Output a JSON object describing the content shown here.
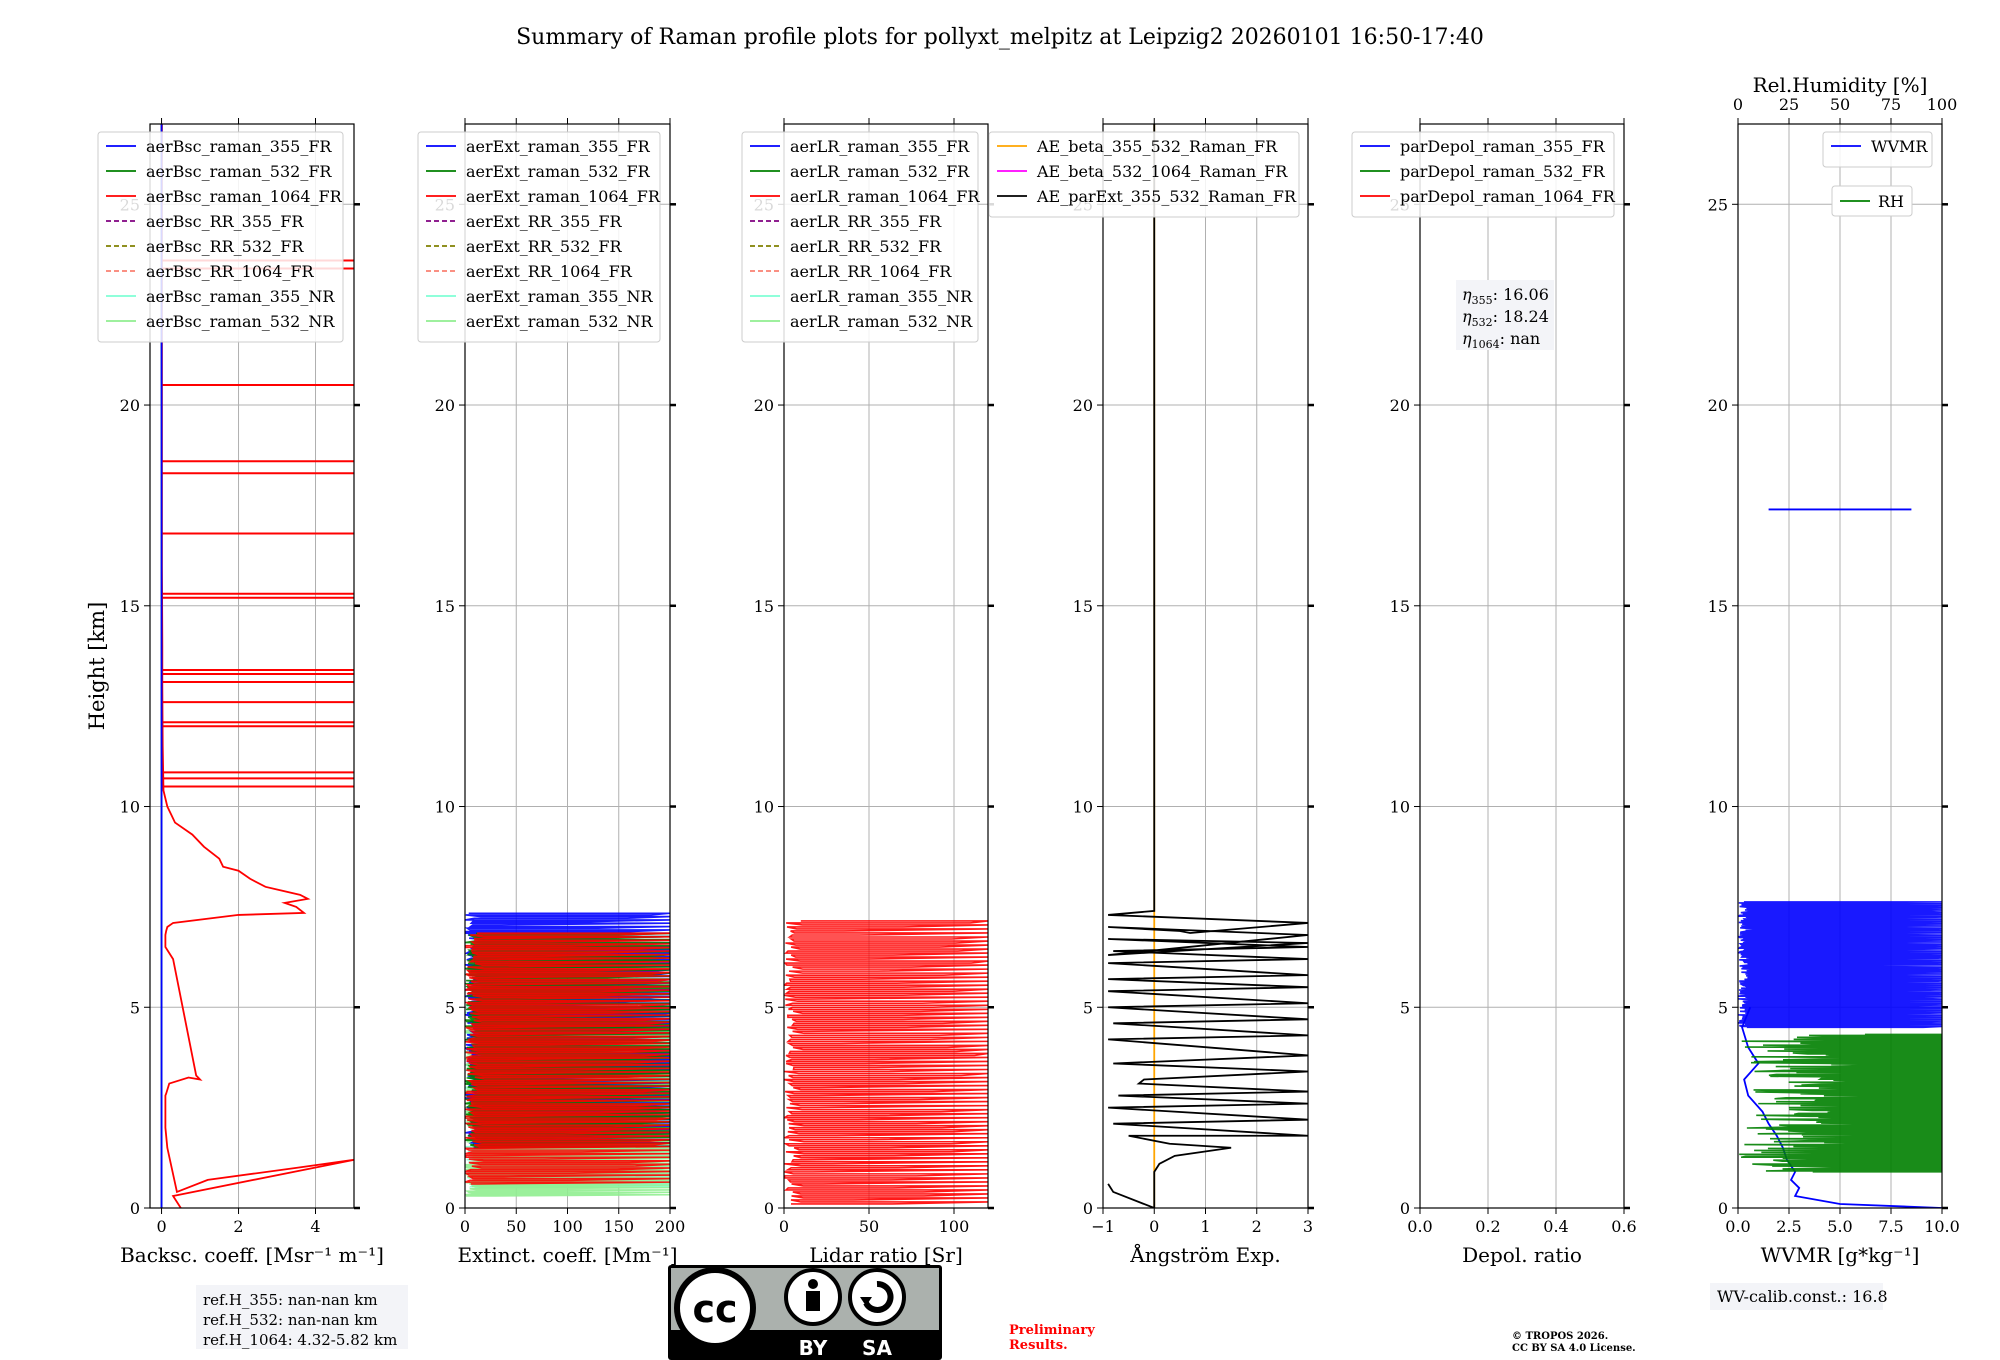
{
  "figure": {
    "title": "Summary of Raman profile plots for pollyxt_melpitz at Leipzig2 20260101 16:50-17:40",
    "ylabel": "Height [km]",
    "ref_heights": [
      "ref.H_355: nan-nan km",
      "ref.H_532: nan-nan km",
      "ref.H_1064: 4.32-5.82 km"
    ],
    "license_badge": {
      "cc": "cc",
      "by": "BY",
      "sa": "SA"
    },
    "preliminary": [
      "Preliminary",
      "Results."
    ],
    "copyright": [
      "© TROPOS 2026.",
      "CC BY SA 4.0 License."
    ],
    "wv_calib": "WV-calib.const.: 16.8",
    "colors": {
      "blue": "#0000ff",
      "green": "#008000",
      "red": "#ff0000",
      "purple": "#800080",
      "olive": "#808000",
      "salmon": "#fa8072",
      "aqua": "#7fffd4",
      "lightgreen": "#90ee90",
      "orange": "#ffa500",
      "magenta": "#ff00ff",
      "black": "#000000"
    }
  },
  "chart_data": [
    {
      "type": "line",
      "panel": "backscatter",
      "xlabel": "Backsc. coeff. [Msr⁻¹ m⁻¹]",
      "ylabel": "Height [km]",
      "xlim": [
        -0.3,
        5
      ],
      "ylim": [
        0,
        27
      ],
      "xticks": [
        0,
        2,
        4
      ],
      "yticks": [
        0,
        5,
        10,
        15,
        20,
        25
      ],
      "legend": [
        "aerBsc_raman_355_FR",
        "aerBsc_raman_532_FR",
        "aerBsc_raman_1064_FR",
        "aerBsc_RR_355_FR",
        "aerBsc_RR_532_FR",
        "aerBsc_RR_1064_FR",
        "aerBsc_raman_355_NR",
        "aerBsc_raman_532_NR"
      ],
      "legend_colors": [
        "blue",
        "green",
        "red",
        "purple",
        "olive",
        "salmon",
        "aqua",
        "lightgreen"
      ],
      "legend_dashed": [
        false,
        false,
        false,
        true,
        true,
        true,
        false,
        false
      ],
      "series": [
        {
          "name": "aerBsc_raman_1064_FR",
          "color": "red",
          "x": [
            0.5,
            0.3,
            5,
            3.5,
            1.2,
            0.4,
            0.15,
            0.1,
            0.1,
            0.12,
            0.2,
            0.7,
            1,
            0.9,
            0.3,
            0.1,
            0.1,
            0.12,
            0.15,
            0.3,
            2,
            3.7,
            3.5,
            3.2,
            3.8,
            3.6,
            2.7,
            2.3,
            2,
            1.6,
            1.5,
            1.1,
            0.8,
            0.35,
            0.25,
            0.15,
            0.1,
            0.05,
            0.03,
            0.02,
            0.02,
            0.01,
            0.01,
            0.01,
            0.01
          ],
          "y": [
            0,
            0.3,
            1.2,
            1.0,
            0.7,
            0.4,
            1.5,
            2.0,
            2.8,
            2.85,
            3.1,
            3.25,
            3.2,
            3.3,
            6.2,
            6.5,
            6.8,
            6.9,
            7.0,
            7.1,
            7.3,
            7.35,
            7.5,
            7.6,
            7.7,
            7.8,
            8.0,
            8.2,
            8.4,
            8.5,
            8.7,
            9.0,
            9.3,
            9.6,
            9.8,
            10.0,
            10.2,
            10.4,
            11.5,
            13.0,
            14.0,
            16.0,
            20.0,
            24.0,
            27.0
          ]
        },
        {
          "name": "aerBsc_raman_1064_FR_spikes",
          "color": "red",
          "spikes": [
            10.5,
            10.7,
            10.85,
            12.0,
            12.1,
            12.6,
            13.1,
            13.3,
            13.4,
            15.2,
            15.3,
            16.8,
            18.3,
            18.6,
            20.5,
            23.4,
            23.6
          ]
        },
        {
          "name": "aerBsc_raman_532_FR",
          "color": "green",
          "x": [
            0,
            0
          ],
          "y": [
            0,
            27
          ]
        },
        {
          "name": "aerBsc_raman_355_FR",
          "color": "blue",
          "x": [
            0,
            0
          ],
          "y": [
            0,
            27
          ]
        }
      ]
    },
    {
      "type": "line",
      "panel": "extinction",
      "xlabel": "Extinct. coeff. [Mm⁻¹]",
      "xlim": [
        0,
        200
      ],
      "ylim": [
        0,
        27
      ],
      "xticks": [
        0,
        50,
        100,
        150,
        200
      ],
      "yticks": [
        0,
        5,
        10,
        15,
        20,
        25
      ],
      "legend": [
        "aerExt_raman_355_FR",
        "aerExt_raman_532_FR",
        "aerExt_raman_1064_FR",
        "aerExt_RR_355_FR",
        "aerExt_RR_532_FR",
        "aerExt_RR_1064_FR",
        "aerExt_raman_355_NR",
        "aerExt_raman_532_NR"
      ],
      "legend_colors": [
        "blue",
        "green",
        "red",
        "purple",
        "olive",
        "salmon",
        "aqua",
        "lightgreen"
      ],
      "legend_dashed": [
        false,
        false,
        false,
        true,
        true,
        true,
        false,
        false
      ],
      "series": [
        {
          "name": "aerExt_raman_355_NR",
          "color": "aqua",
          "x_range": [
            0,
            200
          ],
          "y_range": [
            0.5,
            5.0
          ]
        },
        {
          "name": "aerExt_raman_532_NR",
          "color": "lightgreen",
          "x_range": [
            0,
            200
          ],
          "y_range": [
            0.3,
            4.5
          ]
        },
        {
          "name": "aerExt_raman_355_FR",
          "color": "blue",
          "x_range": [
            0,
            200
          ],
          "y_range": [
            1.5,
            7.3
          ]
        },
        {
          "name": "aerExt_raman_532_FR",
          "color": "green",
          "x_range": [
            0,
            200
          ],
          "y_range": [
            1.5,
            6.8
          ]
        },
        {
          "name": "aerExt_raman_1064_FR",
          "color": "red",
          "x_range": [
            0,
            200
          ],
          "y_range": [
            0.6,
            6.8
          ]
        }
      ]
    },
    {
      "type": "line",
      "panel": "lidar_ratio",
      "xlabel": "Lidar ratio [Sr]",
      "xlim": [
        0,
        120
      ],
      "ylim": [
        0,
        27
      ],
      "xticks": [
        0,
        50,
        100
      ],
      "yticks": [
        0,
        5,
        10,
        15,
        20,
        25
      ],
      "legend": [
        "aerLR_raman_355_FR",
        "aerLR_raman_532_FR",
        "aerLR_raman_1064_FR",
        "aerLR_RR_355_FR",
        "aerLR_RR_532_FR",
        "aerLR_RR_1064_FR",
        "aerLR_raman_355_NR",
        "aerLR_raman_532_NR"
      ],
      "legend_colors": [
        "blue",
        "green",
        "red",
        "purple",
        "olive",
        "salmon",
        "aqua",
        "lightgreen"
      ],
      "legend_dashed": [
        false,
        false,
        false,
        true,
        true,
        true,
        false,
        false
      ],
      "series": [
        {
          "name": "aerLR_raman_1064_FR",
          "color": "red",
          "x_range": [
            0,
            120
          ],
          "y_range": [
            0.1,
            7.1
          ]
        }
      ]
    },
    {
      "type": "line",
      "panel": "angstrom",
      "xlabel": "Ångström Exp.",
      "xlim": [
        -1,
        3
      ],
      "ylim": [
        0,
        27
      ],
      "xticks": [
        -1,
        0,
        1,
        2,
        3
      ],
      "yticks": [
        0,
        5,
        10,
        15,
        20,
        25
      ],
      "legend": [
        "AE_beta_355_532_Raman_FR",
        "AE_beta_532_1064_Raman_FR",
        "AE_parExt_355_532_Raman_FR"
      ],
      "legend_colors": [
        "orange",
        "magenta",
        "black"
      ],
      "legend_dashed": [
        false,
        false,
        false
      ],
      "series": [
        {
          "name": "AE_beta_355_532_Raman_FR",
          "color": "orange",
          "x": [
            0,
            0
          ],
          "y": [
            0,
            27
          ]
        },
        {
          "name": "AE_parExt_355_532_Raman_FR",
          "color": "black",
          "x": [
            -0.9,
            -0.8,
            0,
            0,
            0.1,
            0.4,
            1.5,
            0.3,
            -0.5,
            3,
            -0.8,
            3,
            -0.9,
            3,
            -0.7,
            3,
            -0.3,
            -0.2,
            3,
            -0.8,
            3,
            -0.9,
            3,
            -0.8,
            3,
            -0.9,
            3,
            -0.9,
            3,
            -0.9,
            3,
            -0.9,
            3,
            -0.8,
            3,
            -0.9,
            3,
            -0.9,
            3,
            -0.9,
            0.5,
            0.7,
            3,
            -0.9,
            0,
            0,
            0
          ],
          "y": [
            0.6,
            0.4,
            0,
            0.9,
            1.1,
            1.3,
            1.5,
            1.6,
            1.8,
            1.8,
            2.1,
            2.2,
            2.5,
            2.6,
            2.8,
            2.9,
            3.1,
            3.2,
            3.4,
            3.6,
            3.8,
            4.2,
            4.3,
            4.6,
            4.7,
            5.0,
            5.1,
            5.4,
            5.5,
            5.7,
            5.8,
            6.1,
            6.2,
            6.4,
            6.5,
            6.7,
            6.6,
            6.3,
            6.8,
            7.0,
            6.9,
            6.85,
            7.1,
            7.3,
            7.4,
            15,
            27
          ]
        }
      ]
    },
    {
      "type": "line",
      "panel": "depolarization",
      "xlabel": "Depol. ratio",
      "xlim": [
        0,
        0.6
      ],
      "ylim": [
        0,
        27
      ],
      "xticks": [
        0.0,
        0.2,
        0.4,
        0.6
      ],
      "yticks": [
        0,
        5,
        10,
        15,
        20,
        25
      ],
      "legend": [
        "parDepol_raman_355_FR",
        "parDepol_raman_532_FR",
        "parDepol_raman_1064_FR"
      ],
      "legend_colors": [
        "blue",
        "green",
        "red"
      ],
      "legend_dashed": [
        false,
        false,
        false
      ],
      "annotation": {
        "lines": [
          {
            "sym": "η",
            "sub": "355",
            "val": ": 16.06"
          },
          {
            "sym": "η",
            "sub": "532",
            "val": ": 18.24"
          },
          {
            "sym": "η",
            "sub": "1064",
            "val": ": nan"
          }
        ]
      },
      "series": []
    },
    {
      "type": "line",
      "panel": "water_vapor",
      "xlabel": "WVMR [g*kg⁻¹]",
      "top_xlabel": "Rel.Humidity [%]",
      "xlim": [
        0,
        10
      ],
      "top_xlim": [
        0,
        100
      ],
      "ylim": [
        0,
        27
      ],
      "xticks": [
        0.0,
        2.5,
        5.0,
        7.5,
        10.0
      ],
      "top_xticks": [
        0,
        25,
        50,
        75,
        100
      ],
      "yticks": [
        0,
        5,
        10,
        15,
        20,
        25
      ],
      "legend": [
        "WVMR"
      ],
      "legend_colors": [
        "blue"
      ],
      "legend_dashed": [
        false
      ],
      "legend2": [
        "RH"
      ],
      "legend2_colors": [
        "green"
      ],
      "series": [
        {
          "name": "WVMR",
          "color": "blue",
          "x": [
            10,
            5,
            2.8,
            3.0,
            2.6,
            2.8,
            2.4,
            2.2,
            1.9,
            1.5,
            1.2,
            0.5,
            0.3,
            1.0,
            0.5,
            0.2,
            0.6
          ],
          "y": [
            0,
            0.1,
            0.3,
            0.5,
            0.7,
            0.9,
            1.2,
            1.5,
            1.8,
            2.1,
            2.4,
            2.8,
            3.2,
            3.6,
            4.0,
            4.5,
            5.0
          ]
        },
        {
          "name": "WVMR_line_17km",
          "color": "blue",
          "x": [
            1.5,
            8.5
          ],
          "y": [
            17.4,
            17.4
          ]
        },
        {
          "name": "WVMR_spikes",
          "color": "blue",
          "x_range": [
            0,
            10
          ],
          "y_range": [
            4.5,
            7.6
          ]
        },
        {
          "name": "RH",
          "color": "green",
          "x_range": [
            0,
            100
          ],
          "y_range": [
            0.9,
            4.3
          ]
        }
      ]
    }
  ]
}
